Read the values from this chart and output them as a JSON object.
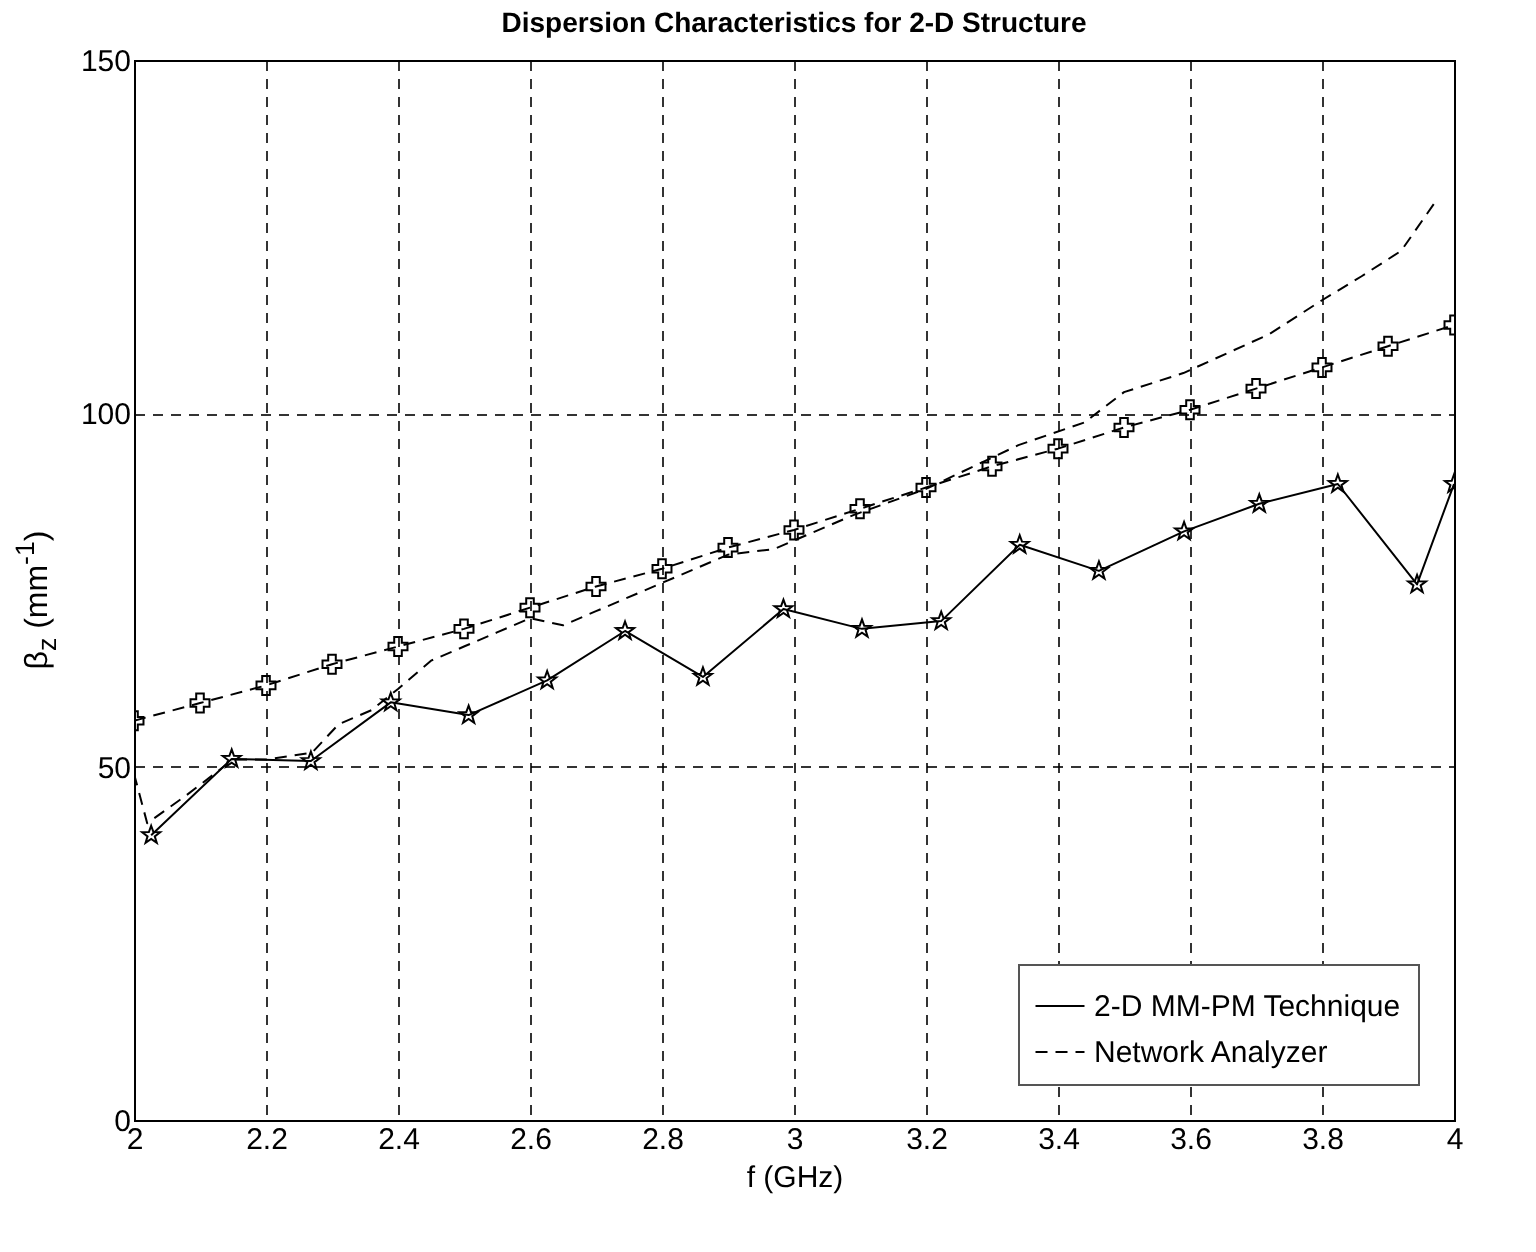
{
  "chart_data": {
    "type": "line",
    "title": "Dispersion Characteristics for 2-D Structure",
    "xlabel": "f (GHz)",
    "ylabel": "β$_{z}$ (mm$^{-1}$)",
    "xlim": [
      2,
      4
    ],
    "xticks": [
      2,
      2.2,
      2.4,
      2.6,
      2.8,
      3,
      3.2,
      3.4,
      3.6,
      3.8,
      4
    ],
    "ylim": [
      0,
      150
    ],
    "yticks": [
      0,
      50,
      100,
      150
    ],
    "grid": true,
    "legend": "bottom right",
    "series": [
      {
        "color": "#000000",
        "line_style": "dashed",
        "marker": "cross",
        "x": [
          2,
          2.1,
          2.2,
          2.3,
          2.4,
          2.5,
          2.6,
          2.7,
          2.8,
          2.9,
          3,
          3.1,
          3.2,
          3.3,
          3.4,
          3.5,
          3.6,
          3.7,
          3.8,
          3.9,
          4
        ],
        "values": [
          56.5,
          59,
          61.5,
          64.5,
          67,
          69.5,
          72.5,
          75.5,
          78,
          81,
          83.5,
          86.5,
          89.5,
          92.5,
          95,
          98,
          100.5,
          103.5,
          106.5,
          109.5,
          112.5
        ]
      },
      {
        "name": "2-D MM-PM Technique",
        "color": "#000000",
        "line_style": "solid",
        "marker": "star",
        "x": [
          2.026,
          2.148,
          2.268,
          2.389,
          2.507,
          2.626,
          2.744,
          2.862,
          2.984,
          3.103,
          3.223,
          3.342,
          3.462,
          3.591,
          3.705,
          3.824,
          3.944,
          4
        ],
        "values": [
          40.3,
          51.1,
          50.8,
          59.1,
          57.3,
          62.2,
          69.2,
          62.7,
          72.3,
          69.5,
          70.6,
          81.4,
          77.7,
          83.3,
          87.2,
          90,
          75.8,
          90
        ]
      },
      {
        "name": "Network Analyzer",
        "color": "#000000",
        "line_style": "dashed",
        "marker": "none",
        "x": [
          2,
          2.02,
          2.08,
          2.15,
          2.2,
          2.27,
          2.31,
          2.36,
          2.4,
          2.45,
          2.5,
          2.55,
          2.6,
          2.65,
          2.7,
          2.8,
          2.9,
          2.97,
          3.09,
          3.2,
          3.34,
          3.44,
          3.5,
          3.59,
          3.72,
          3.8,
          3.86,
          3.92,
          3.97
        ],
        "values": [
          49,
          42,
          46,
          51,
          51,
          52,
          56,
          58,
          61,
          65,
          67,
          69,
          71,
          70,
          72,
          76,
          80,
          80.8,
          85.6,
          89.3,
          95.5,
          98.7,
          103,
          105.7,
          111.2,
          116,
          119.4,
          123,
          129.7
        ]
      }
    ]
  }
}
